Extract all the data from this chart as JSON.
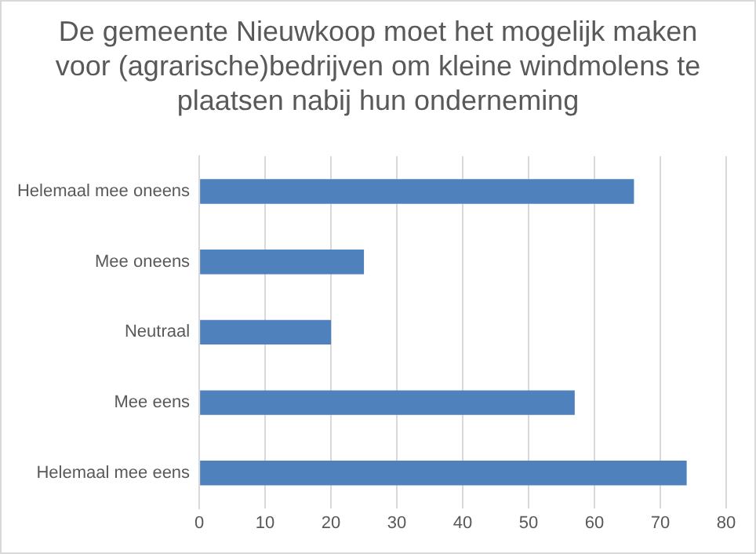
{
  "chart_data": {
    "type": "bar",
    "orientation": "horizontal",
    "title": "De gemeente Nieuwkoop moet het mogelijk maken voor (agrarische)bedrijven om kleine windmolens te plaatsen nabij hun onderneming",
    "categories": [
      "Helemaal mee oneens",
      "Mee oneens",
      "Neutraal",
      "Mee eens",
      "Helemaal mee eens"
    ],
    "values": [
      66,
      25,
      20,
      57,
      74
    ],
    "color": "#4f81bd",
    "xlim": [
      0,
      80
    ],
    "xticks": [
      0,
      10,
      20,
      30,
      40,
      50,
      60,
      70,
      80
    ],
    "grid": "x",
    "legend": false
  }
}
